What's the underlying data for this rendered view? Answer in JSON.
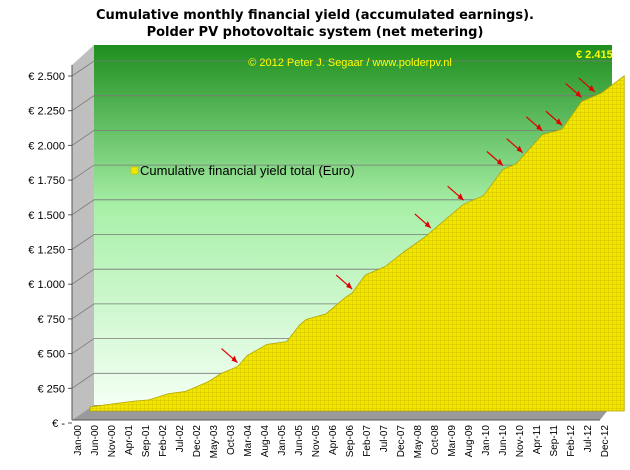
{
  "chart_data": {
    "type": "area",
    "title_line1": "Cumulative monthly financial yield (accumulated earnings).",
    "title_line2": "Polder PV photovoltaic system (net metering)",
    "watermark": "© 2012 Peter J. Segaar / www.polderpv.nl",
    "legend": "Cumulative financial yield total (Euro)",
    "end_label": "€ 2.415",
    "yticks": [
      "€ -",
      "€ 250",
      "€ 500",
      "€ 750",
      "€ 1.000",
      "€ 1.250",
      "€ 1.500",
      "€ 1.750",
      "€ 2.000",
      "€ 2.250",
      "€ 2.500"
    ],
    "ylim": [
      0,
      2500
    ],
    "xticks": [
      "Jan-00",
      "Jun-00",
      "Nov-00",
      "Apr-01",
      "Sep-01",
      "Feb-02",
      "Jul-02",
      "Dec-02",
      "May-03",
      "Oct-03",
      "Mar-04",
      "Aug-04",
      "Jan-05",
      "Jun-05",
      "Nov-05",
      "Apr-06",
      "Sep-06",
      "Feb-07",
      "Jul-07",
      "Dec-07",
      "May-08",
      "Oct-08",
      "Mar-09",
      "Aug-09",
      "Jan-10",
      "Jun-10",
      "Nov-10",
      "Apr-11",
      "Sep-11",
      "Feb-12",
      "Jul-12",
      "Dec-12"
    ],
    "x_month_index": [
      0,
      13,
      18,
      24,
      29,
      36,
      40,
      45,
      48,
      54,
      60,
      64,
      66,
      72,
      78,
      80,
      84,
      90,
      96,
      102,
      108,
      114,
      120,
      126,
      130,
      138,
      144,
      150,
      156,
      163
    ],
    "values": [
      30,
      70,
      80,
      125,
      140,
      210,
      270,
      320,
      400,
      480,
      500,
      620,
      660,
      700,
      820,
      850,
      980,
      1040,
      1150,
      1250,
      1370,
      1490,
      1550,
      1740,
      1780,
      1990,
      2030,
      2230,
      2290,
      2415
    ],
    "colors": {
      "fill": "#f2e600",
      "fill_dark": "#c9b800",
      "bg_top": "#1e8e1e",
      "bg_bottom": "#eaffea",
      "arrow": "#e00000",
      "end_label": "#ffff00"
    }
  }
}
